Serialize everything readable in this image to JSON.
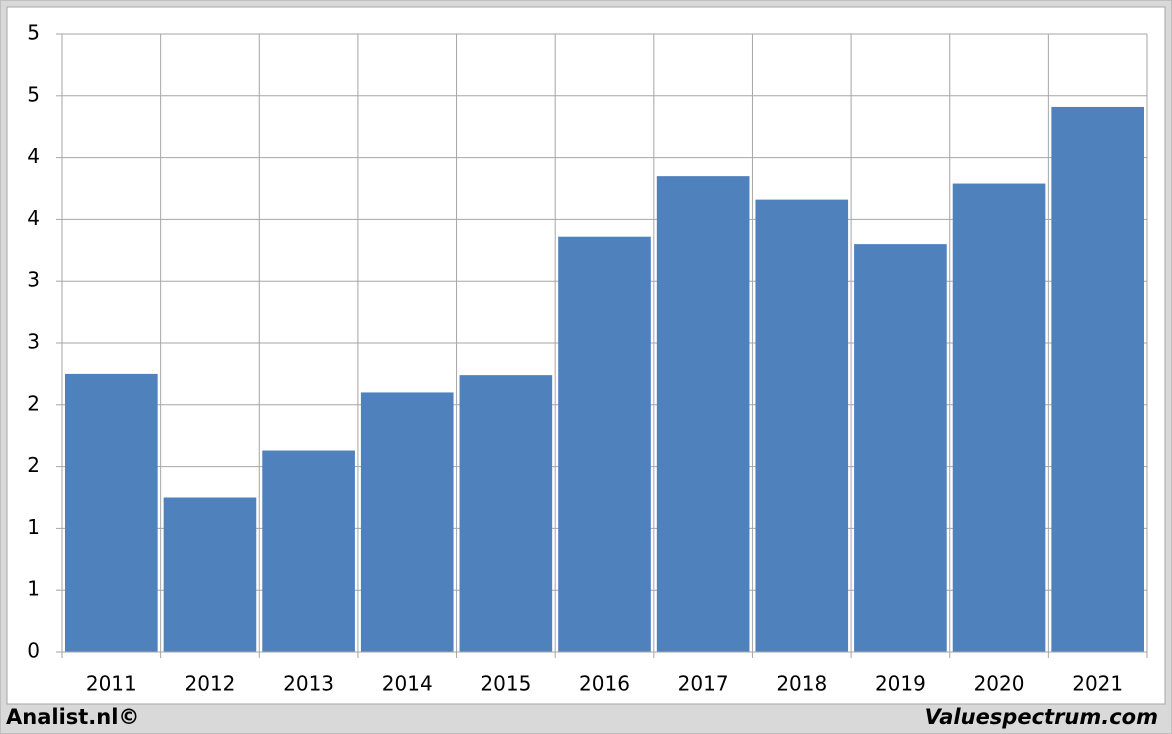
{
  "chart_data": {
    "type": "bar",
    "categories": [
      "2011",
      "2012",
      "2013",
      "2014",
      "2015",
      "2016",
      "2017",
      "2018",
      "2019",
      "2020",
      "2021"
    ],
    "values": [
      2.25,
      1.25,
      1.63,
      2.1,
      2.24,
      3.36,
      3.85,
      3.66,
      3.3,
      3.79,
      4.41
    ],
    "color": "#4f81bd",
    "ylim": [
      0,
      5
    ],
    "yticks": [
      0,
      {
        "value": 0.5,
        "label": "1"
      },
      1,
      {
        "value": 1.5,
        "label": "2"
      },
      2,
      {
        "value": 2.5,
        "label": "3"
      },
      3,
      {
        "value": 3.5,
        "label": "4"
      },
      4,
      {
        "value": 4.5,
        "label": "5"
      },
      5
    ],
    "grid": true
  },
  "footer": {
    "left": "Analist.nl©",
    "right": "Valuespectrum.com"
  }
}
